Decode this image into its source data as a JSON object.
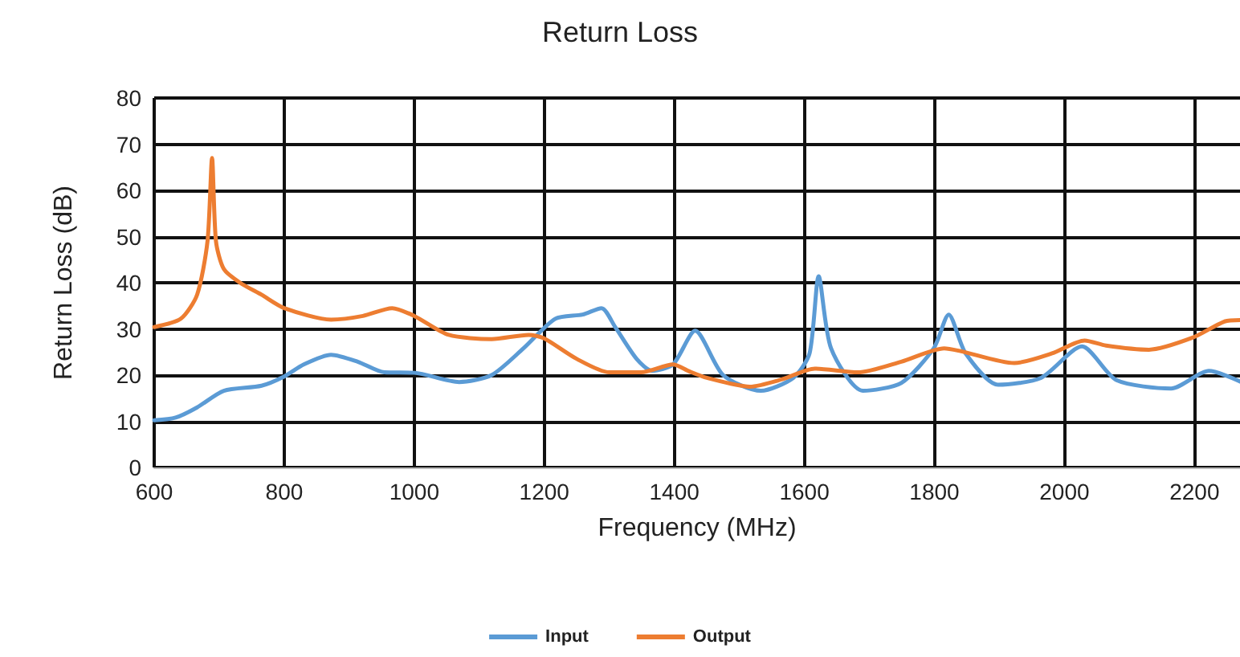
{
  "chart_data": {
    "type": "line",
    "title": "Return Loss",
    "xlabel": "Frequency (MHz)",
    "ylabel": "Return Loss (dB)",
    "xlim": [
      600,
      2270
    ],
    "xticks": [
      600,
      800,
      1000,
      1200,
      1400,
      1600,
      1800,
      2000,
      2200
    ],
    "ylim": [
      0,
      80
    ],
    "yticks": [
      0,
      10,
      20,
      30,
      40,
      50,
      60,
      70,
      80
    ],
    "grid": true,
    "legend": "bottom",
    "marker": "none",
    "line_style": "solid",
    "series": [
      {
        "name": "Input",
        "color": "#5b9bd5",
        "x": [
          600,
          633,
          666,
          707,
          765,
          800,
          830,
          872,
          913,
          954,
          1000,
          1069,
          1119,
          1168,
          1217,
          1259,
          1288,
          1309,
          1342,
          1366,
          1398,
          1432,
          1475,
          1533,
          1583,
          1608,
          1622,
          1641,
          1690,
          1749,
          1799,
          1822,
          1848,
          1898,
          1964,
          2027,
          2080,
          2164,
          2222,
          2270
        ],
        "values": [
          10.2,
          10.8,
          13,
          16.6,
          17.7,
          19.7,
          22.3,
          24.4,
          22.9,
          20.6,
          20.5,
          18.5,
          20,
          25.8,
          32.2,
          33.1,
          34.5,
          30.4,
          23.5,
          20.9,
          22.3,
          29.6,
          20,
          16.6,
          19.4,
          24.7,
          41.4,
          25.8,
          16.6,
          18.3,
          25.8,
          33.1,
          24.7,
          17.9,
          19.4,
          26.2,
          18.9,
          17.1,
          20.9,
          18.6
        ]
      },
      {
        "name": "Output",
        "color": "#ed7d31",
        "x": [
          600,
          641,
          666,
          682,
          689,
          695,
          707,
          732,
          765,
          800,
          872,
          921,
          966,
          1000,
          1053,
          1119,
          1176,
          1199,
          1250,
          1300,
          1349,
          1398,
          1423,
          1450,
          1516,
          1566,
          1616,
          1682,
          1749,
          1815,
          1840,
          1923,
          1981,
          2031,
          2064,
          2130,
          2197,
          2246,
          2270
        ],
        "values": [
          30.4,
          32.2,
          37.4,
          49,
          67,
          49,
          43,
          40,
          37.4,
          34.5,
          32,
          32.8,
          34.5,
          32.8,
          28.7,
          27.8,
          28.7,
          28,
          23.5,
          20.6,
          20.6,
          22.3,
          20.8,
          19.4,
          17.5,
          19.1,
          21.4,
          20.6,
          22.9,
          25.8,
          25.2,
          22.6,
          24.7,
          27.5,
          26.4,
          25.5,
          28.1,
          31.6,
          31.9
        ]
      }
    ]
  }
}
